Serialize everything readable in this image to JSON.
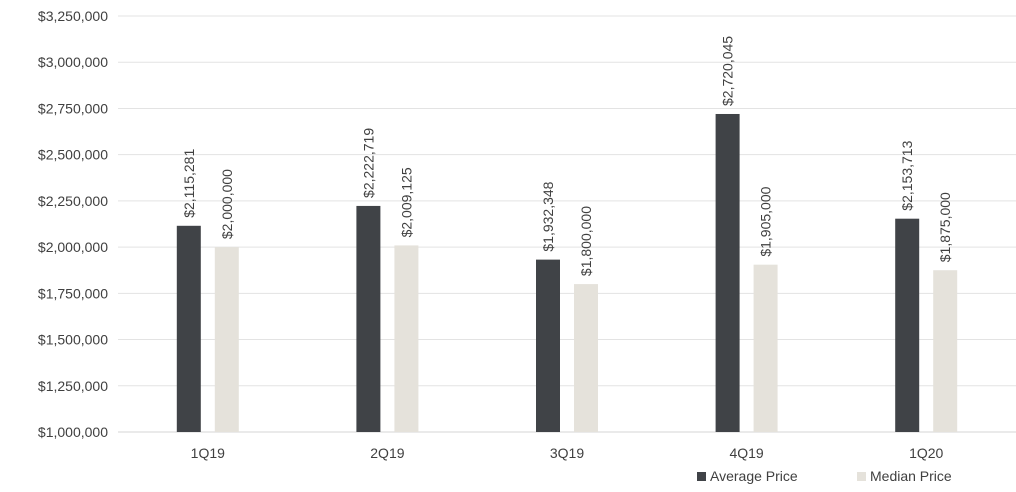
{
  "chart_data": {
    "type": "bar",
    "categories": [
      "1Q19",
      "2Q19",
      "3Q19",
      "4Q19",
      "1Q20"
    ],
    "series": [
      {
        "name": "Average Price",
        "color": "#404347",
        "values": [
          2115281,
          2222719,
          1932348,
          2720045,
          2153713
        ],
        "labels": [
          "$2,115,281",
          "$2,222,719",
          "$1,932,348",
          "$2,720,045",
          "$2,153,713"
        ]
      },
      {
        "name": "Median Price",
        "color": "#e5e2db",
        "values": [
          2000000,
          2009125,
          1800000,
          1905000,
          1875000
        ],
        "labels": [
          "$2,000,000",
          "$2,009,125",
          "$1,800,000",
          "$1,905,000",
          "$1,875,000"
        ]
      }
    ],
    "ylim": [
      1000000,
      3250000
    ],
    "yticks": [
      1000000,
      1250000,
      1500000,
      1750000,
      2000000,
      2250000,
      2500000,
      2750000,
      3000000,
      3250000
    ],
    "ytick_labels": [
      "$1,000,000",
      "$1,250,000",
      "$1,500,000",
      "$1,750,000",
      "$2,000,000",
      "$2,250,000",
      "$2,500,000",
      "$2,750,000",
      "$3,000,000",
      "$3,250,000"
    ],
    "grid": true,
    "legend_position": "bottom-right"
  }
}
